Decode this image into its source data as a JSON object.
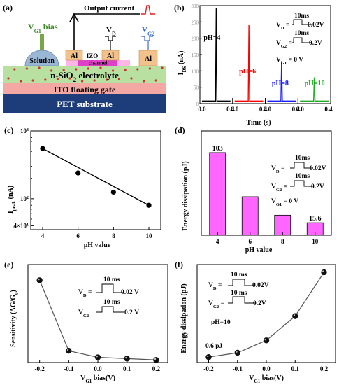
{
  "panels": {
    "a": "(a)",
    "b": "(b)",
    "c": "(c)",
    "d": "(d)",
    "e": "(e)",
    "f": "(f)"
  },
  "device": {
    "output_current": "Output current",
    "vg1_bias": "V",
    "vg1_sub": "G1",
    "vg1_tail": " bias",
    "vd": "V",
    "vd_sub": "D",
    "vg2": "V",
    "vg2_sub": "G2",
    "solution": "Solution",
    "izo": "IZO",
    "channel": "channel",
    "al": "Al",
    "electrolyte": "n-SiO",
    "electrolyte_sub": "2",
    "electrolyte_tail": " electrolyte",
    "ito": "ITO floating gate",
    "pet": "PET substrate",
    "colors": {
      "solution": "#9ab8d6",
      "izo": "#ffb6e6",
      "channel": "#e040c8",
      "al": "#f2c28c",
      "electrolyte": "#b8e0a0",
      "dots": "#cc3333",
      "ito": "#f4a8a4",
      "pet": "#1c3d7a",
      "vg1_probe": "#7aa64a",
      "vg2_pulse": "#3a6fc9",
      "output_pulse": "#e02020"
    }
  },
  "common": {
    "vd_pulse_time": "10ms",
    "vd_eq": "V",
    "vd_eq_sub": "D",
    "vd_val": "0.02V",
    "vg2_val": "0.2V",
    "vg2_eq_sub": "G2",
    "vg1_eq": "V",
    "vg1_eq_sub": "G1",
    "vg1_val": "= 0 V"
  },
  "text_b": {
    "ylabel": "I",
    "ylabel_sub": "DS",
    "ylabel_unit": " (nA)",
    "xlabel": "Time (s)"
  },
  "text_c": {
    "ylabel": "I",
    "ylabel_sub": "peak",
    "ylabel_unit": " (nA)",
    "xlabel": "pH value"
  },
  "text_d": {
    "ylabel": "Energy dissipation (pJ)",
    "xlabel": "pH value"
  },
  "text_e": {
    "ylabel": "Sensitivity (ΔG/G",
    "ylabel_sub": "0",
    "ylabel_tail": ")",
    "xlabel": "V",
    "xlabel_sub": "G1",
    "xlabel_tail": " bias(V)",
    "time": "10 ms",
    "vd_val": "0.02 V",
    "vg2_val": "0.2 V"
  },
  "text_f": {
    "ylabel": "Energy dissipation (pJ)",
    "xlabel": "V",
    "xlabel_sub": "G1",
    "xlabel_tail": " bias(V)",
    "time": "10 ms",
    "ph": "pH=10",
    "annot": "0.6 pJ"
  },
  "chart_data": [
    {
      "id": "b",
      "type": "line",
      "x": [
        0,
        0.4
      ],
      "xticks": [
        "0.0",
        "0.4"
      ],
      "yticks": [
        "0",
        "50",
        "100",
        "150",
        "200",
        "250",
        "300"
      ],
      "ylim": [
        0,
        300
      ],
      "series": [
        {
          "name": "pH=4",
          "peak_time": 0.2,
          "peak": 470,
          "color": "#000000"
        },
        {
          "name": "pH=6",
          "peak_time": 0.2,
          "peak": 240,
          "color": "#ff0000"
        },
        {
          "name": "pH=8",
          "peak_time": 0.2,
          "peak": 130,
          "color": "#1a1aff"
        },
        {
          "name": "pH=10",
          "peak_time": 0.2,
          "peak": 80,
          "color": "#22aa22"
        }
      ]
    },
    {
      "id": "c",
      "type": "scatter",
      "yscale": "log",
      "x": [
        4,
        6,
        8,
        10
      ],
      "y": [
        550,
        240,
        125,
        80
      ],
      "xticks": [
        "4",
        "6",
        "8",
        "10"
      ],
      "ylim": [
        35,
        1000
      ],
      "yticks": [
        {
          "main": "10",
          "sup": "3"
        },
        {
          "main": "10",
          "sup": "2"
        },
        {
          "main": "4×10",
          "sup": "1"
        }
      ]
    },
    {
      "id": "d",
      "type": "bar",
      "categories": [
        "4",
        "6",
        "8",
        "10"
      ],
      "values": [
        103,
        48,
        25,
        15.6
      ],
      "labels": [
        "103",
        "",
        "",
        "15.6"
      ],
      "ylim": [
        0,
        130
      ],
      "color": "#ff66ff"
    },
    {
      "id": "e",
      "type": "line",
      "x": [
        -0.2,
        -0.1,
        0.0,
        0.1,
        0.2
      ],
      "y": [
        63,
        9,
        4,
        3,
        2
      ],
      "xticks": [
        "-0.2",
        "-0.1",
        "0.0",
        "0.1",
        "0.2"
      ],
      "xlim": [
        -0.24,
        0.24
      ],
      "ylim": [
        0,
        75
      ]
    },
    {
      "id": "f",
      "type": "line",
      "x": [
        -0.2,
        -0.1,
        0.0,
        0.1,
        0.2
      ],
      "y": [
        0.6,
        9,
        33,
        80,
        165
      ],
      "xticks": [
        "-0.2",
        "-0.1",
        "0.0",
        "0.1",
        "0.2"
      ],
      "xlim": [
        -0.24,
        0.24
      ],
      "ylim": [
        -10,
        180
      ]
    }
  ]
}
